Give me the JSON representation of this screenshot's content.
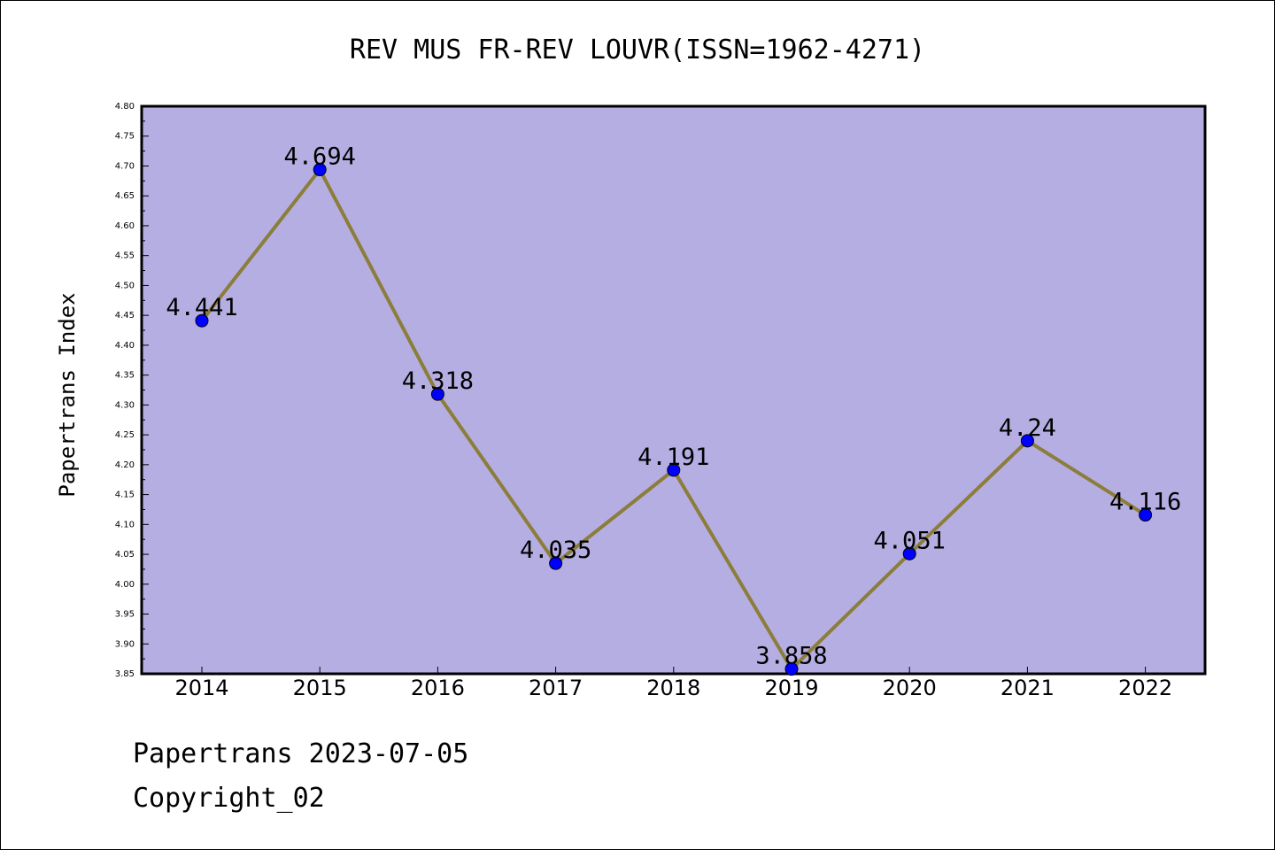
{
  "chart_data": {
    "type": "line",
    "title": "REV MUS FR-REV LOUVR(ISSN=1962-4271)",
    "xlabel": "",
    "ylabel": "Papertrans Index",
    "categories": [
      "2014",
      "2015",
      "2016",
      "2017",
      "2018",
      "2019",
      "2020",
      "2021",
      "2022"
    ],
    "series": [
      {
        "values": [
          4.441,
          4.694,
          4.318,
          4.035,
          4.191,
          3.858,
          4.051,
          4.24,
          4.116
        ],
        "labels": [
          "4.441",
          "4.694",
          "4.318",
          "4.035",
          "4.191",
          "3.858",
          "4.051",
          "4.24",
          "4.116"
        ]
      }
    ],
    "ylim": [
      3.85,
      4.8
    ],
    "ytick_step": 0.05,
    "grid": false,
    "legend": "none",
    "colors": {
      "plot_background": "#b5aee2",
      "line": "#8b7d3a",
      "marker": "#0000ff"
    }
  },
  "footer": {
    "date_line": "Papertrans 2023-07-05",
    "copyright_line": "Copyright_02"
  }
}
